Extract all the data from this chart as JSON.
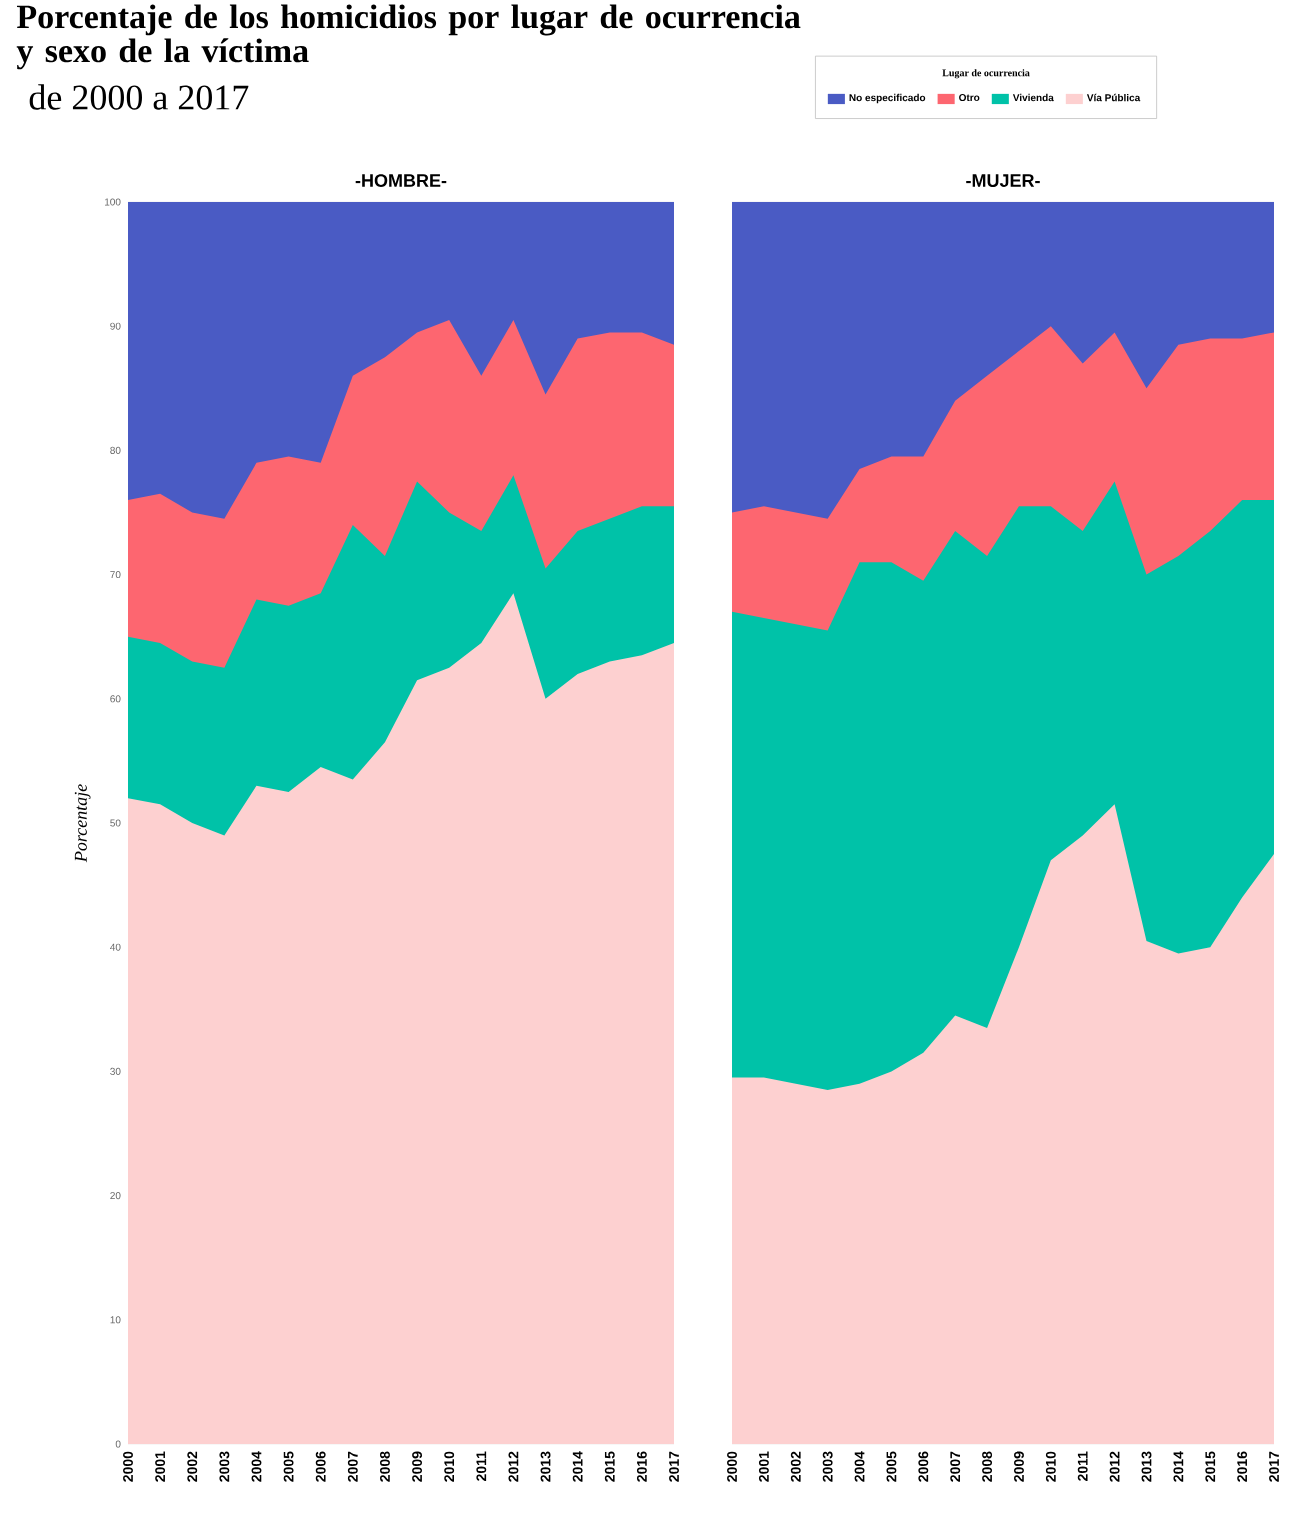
{
  "chart_data": [
    {
      "type": "area",
      "stacked": true,
      "title": "-HOMBRE-",
      "annotations": [
        "Porcentaje de los homicidios por lugar de ocurrencia y sexo de la víctima",
        "de 2000 a 2017"
      ],
      "ylabel": "Porcentaje",
      "legend_title": "Lugar de ocurrencia",
      "legend": "top right",
      "grid": "y",
      "categories": [
        "2000",
        "2001",
        "2002",
        "2003",
        "2004",
        "2005",
        "2006",
        "2007",
        "2008",
        "2009",
        "2010",
        "2011",
        "2012",
        "2013",
        "2014",
        "2015",
        "2016",
        "2017"
      ],
      "ylim": [
        0,
        100
      ],
      "yticks": [
        0,
        10,
        20,
        30,
        40,
        50,
        60,
        70,
        80,
        90,
        100
      ],
      "series": [
        {
          "name": "Vía Pública",
          "color": "#fdd0d0",
          "values": [
            52,
            51.5,
            50,
            49,
            53,
            52.5,
            54.5,
            53.5,
            56.5,
            61.5,
            62.5,
            64.5,
            68.5,
            60,
            62,
            63,
            63.5,
            64.5
          ]
        },
        {
          "name": "Vivienda",
          "color": "#00c2a8",
          "values": [
            13,
            13,
            13,
            13.5,
            15,
            15,
            14,
            20.5,
            15,
            16,
            12.5,
            9,
            9.5,
            10.5,
            11.5,
            11.5,
            12,
            11
          ]
        },
        {
          "name": "Otro",
          "color": "#fd6670",
          "values": [
            11,
            12,
            12,
            12,
            11,
            12,
            10.5,
            12,
            16,
            12,
            15.5,
            12.5,
            12.5,
            14,
            15.5,
            15,
            14,
            13
          ]
        },
        {
          "name": "No especificado",
          "color": "#4a5bc4",
          "values": [
            24,
            23.5,
            25,
            25.5,
            21,
            20.5,
            21,
            14,
            12.5,
            10.5,
            9.5,
            14,
            9.5,
            15.5,
            11,
            10.5,
            10.5,
            11.5
          ]
        }
      ]
    },
    {
      "type": "area",
      "stacked": true,
      "title": "-MUJER-",
      "grid": "y",
      "tick_labels": "x",
      "categories": [
        "2000",
        "2001",
        "2002",
        "2003",
        "2004",
        "2005",
        "2006",
        "2007",
        "2008",
        "2009",
        "2010",
        "2011",
        "2012",
        "2013",
        "2014",
        "2015",
        "2016",
        "2017"
      ],
      "ylim": [
        0,
        100
      ],
      "yticks": [
        0,
        10,
        20,
        30,
        40,
        50,
        60,
        70,
        80,
        90,
        100
      ],
      "series": [
        {
          "color": "#fdd0d0",
          "values": [
            29.5,
            29.5,
            29,
            28.5,
            29,
            30,
            31.5,
            34.5,
            33.5,
            40,
            47,
            49,
            51.5,
            40.5,
            39.5,
            40,
            44,
            47.5
          ]
        },
        {
          "color": "#00c2a8",
          "values": [
            37.5,
            37,
            37,
            37,
            42,
            41,
            38,
            39,
            38,
            35.5,
            28.5,
            24.5,
            26,
            29.5,
            32,
            33.5,
            32,
            28.5
          ]
        },
        {
          "color": "#fd6670",
          "values": [
            8,
            9,
            9,
            9,
            7.5,
            8.5,
            10,
            10.5,
            14.5,
            12.5,
            14.5,
            13.5,
            12,
            15,
            17,
            15.5,
            13,
            13.5
          ]
        },
        {
          "color": "#4a5bc4",
          "values": [
            25,
            24.5,
            25,
            25.5,
            21.5,
            20.5,
            20.5,
            16,
            14,
            12,
            10,
            13,
            10.5,
            15,
            11.5,
            11,
            11,
            10.5
          ]
        }
      ]
    }
  ]
}
